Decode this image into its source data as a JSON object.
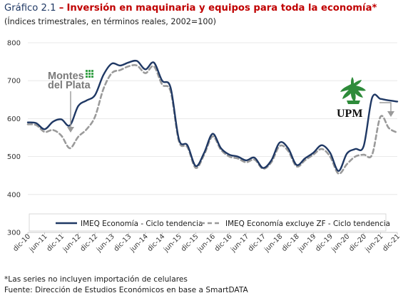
{
  "header": {
    "prefix": "Gráfico 2.1",
    "dash": "–",
    "title": "Inversión en maquinaria y equipos para toda la economía*",
    "subtitle": "(Índices trimestrales, en términos reales, 2002=100)"
  },
  "footer": {
    "note": "*Las series no incluyen importación de celulares",
    "source": "Fuente: Dirección de Estudios Económicos en base a SmartDATA"
  },
  "logos": {
    "montes": "Montes del Plata",
    "upm": "UPM"
  },
  "colors": {
    "series_total": "#1f3864",
    "series_exzf": "#9a9a9a",
    "montes_text": "#7a7a7a",
    "montes_icon": "#3aa24a",
    "upm_green": "#2e8b3a",
    "upm_text": "#111111",
    "arrow": "#9a9a9a"
  },
  "chart_data": {
    "type": "line",
    "title": "Inversión en maquinaria y equipos para toda la economía*",
    "subtitle": "(Índices trimestrales, en términos reales, 2002=100)",
    "xlabel": "",
    "ylabel": "",
    "ylim": [
      300,
      800
    ],
    "yticks": [
      300,
      400,
      500,
      600,
      700,
      800
    ],
    "grid": "horizontal",
    "legend_position": "bottom",
    "x": [
      "dic-10",
      "mar-11",
      "jun-11",
      "sep-11",
      "dic-11",
      "mar-12",
      "jun-12",
      "sep-12",
      "dic-12",
      "mar-13",
      "jun-13",
      "sep-13",
      "dic-13",
      "mar-14",
      "jun-14",
      "sep-14",
      "dic-14",
      "mar-15",
      "jun-15",
      "sep-15",
      "dic-15",
      "mar-16",
      "jun-16",
      "sep-16",
      "dic-16",
      "mar-17",
      "jun-17",
      "sep-17",
      "dic-17",
      "mar-18",
      "jun-18",
      "sep-18",
      "dic-18",
      "mar-19",
      "jun-19",
      "sep-19",
      "dic-19",
      "mar-20",
      "jun-20",
      "sep-20",
      "dic-20",
      "mar-21",
      "jun-21",
      "sep-21",
      "dic-21"
    ],
    "xtick_labels": [
      "dic-10",
      "jun-11",
      "dic-11",
      "jun-12",
      "dic-12",
      "jun-13",
      "dic-13",
      "jun-14",
      "dic-14",
      "jun-15",
      "dic-15",
      "jun-16",
      "dic-16",
      "jun-17",
      "dic-17",
      "jun-18",
      "dic-18",
      "jun-19",
      "dic-19",
      "jun-20",
      "dic-20",
      "jun-21",
      "dic-21"
    ],
    "series": [
      {
        "name": "IMEQ Economía - Ciclo tendencia",
        "style": "solid",
        "values": [
          590,
          588,
          572,
          592,
          598,
          582,
          633,
          648,
          662,
          715,
          745,
          740,
          748,
          752,
          730,
          748,
          700,
          682,
          545,
          530,
          475,
          510,
          560,
          522,
          505,
          500,
          490,
          497,
          470,
          490,
          537,
          522,
          478,
          495,
          510,
          530,
          510,
          462,
          508,
          520,
          528,
          655,
          652,
          648,
          645
        ]
      },
      {
        "name": "IMEQ Economía excluye ZF - Ciclo tendencia",
        "style": "dashed",
        "values": [
          585,
          583,
          565,
          570,
          555,
          522,
          552,
          572,
          605,
          678,
          720,
          728,
          738,
          740,
          720,
          738,
          690,
          672,
          540,
          525,
          470,
          505,
          553,
          518,
          500,
          495,
          485,
          492,
          468,
          485,
          528,
          515,
          474,
          490,
          505,
          520,
          500,
          455,
          480,
          500,
          505,
          505,
          605,
          575,
          563
        ]
      }
    ]
  }
}
